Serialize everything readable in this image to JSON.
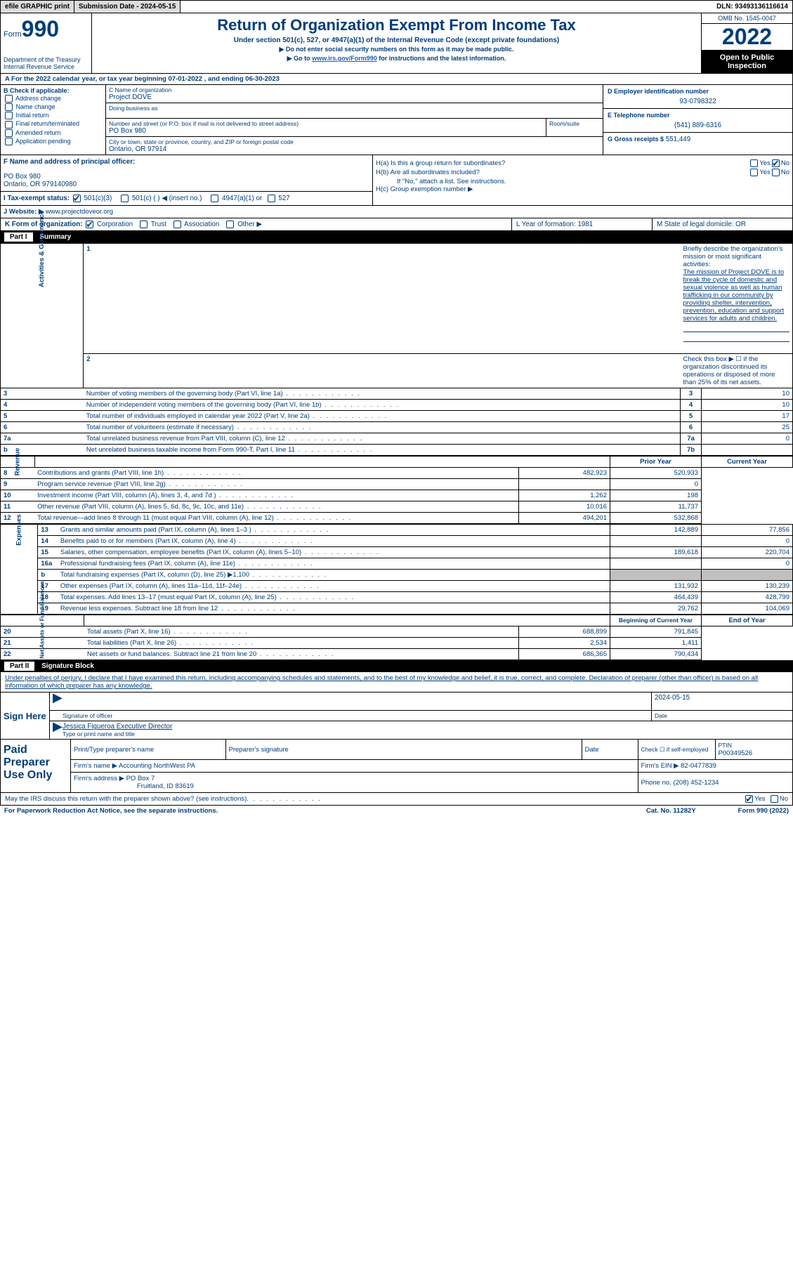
{
  "top": {
    "efile": "efile GRAPHIC print",
    "submission": "Submission Date - 2024-05-15",
    "dln": "DLN: 93493136116614"
  },
  "header": {
    "form_label": "Form",
    "form_number": "990",
    "title": "Return of Organization Exempt From Income Tax",
    "subtitle": "Under section 501(c), 527, or 4947(a)(1) of the Internal Revenue Code (except private foundations)",
    "note1": "▶ Do not enter social security numbers on this form as it may be made public.",
    "note2_prefix": "▶ Go to ",
    "note2_link": "www.irs.gov/Form990",
    "note2_suffix": " for instructions and the latest information.",
    "omb": "OMB No. 1545-0047",
    "year": "2022",
    "open": "Open to Public Inspection",
    "dept": "Department of the Treasury",
    "irs": "Internal Revenue Service"
  },
  "lineA": "A For the 2022 calendar year, or tax year beginning 07-01-2022    , and ending 06-30-2023",
  "sectionB": {
    "header": "B Check if applicable:",
    "items": [
      "Address change",
      "Name change",
      "Initial return",
      "Final return/terminated",
      "Amended return",
      "Application pending"
    ]
  },
  "sectionC": {
    "name_label": "C Name of organization",
    "name": "Project DOVE",
    "dba_label": "Doing business as",
    "dba": "",
    "street_label": "Number and street (or P.O. box if mail is not delivered to street address)",
    "room_label": "Room/suite",
    "street": "PO Box 980",
    "city_label": "City or town, state or province, country, and ZIP or foreign postal code",
    "city": "Ontario, OR  97914"
  },
  "sectionD": {
    "ein_label": "D Employer identification number",
    "ein": "93-0798322",
    "phone_label": "E Telephone number",
    "phone": "(541) 889-6316",
    "gross_label": "G Gross receipts $",
    "gross": "551,449"
  },
  "sectionF": {
    "label": "F Name and address of principal officer:",
    "name": "",
    "addr1": "PO Box 980",
    "addr2": "Ontario, OR  979140980"
  },
  "sectionH": {
    "ha": "H(a)  Is this a group return for subordinates?",
    "ha_no": true,
    "hb": "H(b)  Are all subordinates included?",
    "hb_note": "If \"No,\" attach a list. See instructions.",
    "hc": "H(c)  Group exemption number ▶"
  },
  "sectionI": {
    "label": "I  Tax-exempt status:",
    "opt1": "501(c)(3)",
    "opt2": "501(c) (  ) ◀ (insert no.)",
    "opt3": "4947(a)(1) or",
    "opt4": "527"
  },
  "sectionJ": {
    "label": "J  Website: ▶",
    "value": "www.projectdoveor.org"
  },
  "sectionK": {
    "label": "K Form of organization:",
    "opts": [
      "Corporation",
      "Trust",
      "Association",
      "Other ▶"
    ],
    "L": "L Year of formation: 1981",
    "M": "M State of legal domicile: OR"
  },
  "part1": {
    "title": "Summary",
    "q1_label": "Briefly describe the organization's mission or most significant activities:",
    "q1_text": "The mission of Project DOVE is to break the cycle of domestic and sexual violence as well as human trafficking in our community by providing shelter, intervention, prevention, education and support services for adults and children.",
    "q2": "Check this box ▶ ☐  if the organization discontinued its operations or disposed of more than 25% of its net assets.",
    "rows_ag": [
      {
        "n": "3",
        "t": "Number of voting members of the governing body (Part VI, line 1a)",
        "box": "3",
        "v": "10"
      },
      {
        "n": "4",
        "t": "Number of independent voting members of the governing body (Part VI, line 1b)",
        "box": "4",
        "v": "10"
      },
      {
        "n": "5",
        "t": "Total number of individuals employed in calendar year 2022 (Part V, line 2a)",
        "box": "5",
        "v": "17"
      },
      {
        "n": "6",
        "t": "Total number of volunteers (estimate if necessary)",
        "box": "6",
        "v": "25"
      },
      {
        "n": "7a",
        "t": "Total unrelated business revenue from Part VIII, column (C), line 12",
        "box": "7a",
        "v": "0"
      },
      {
        "n": "b",
        "t": "Net unrelated business taxable income from Form 990-T, Part I, line 11",
        "box": "7b",
        "v": ""
      }
    ],
    "py_hdr": "Prior Year",
    "cy_hdr": "Current Year",
    "rows_rev": [
      {
        "n": "8",
        "t": "Contributions and grants (Part VIII, line 1h)",
        "py": "482,923",
        "cy": "520,933"
      },
      {
        "n": "9",
        "t": "Program service revenue (Part VIII, line 2g)",
        "py": "",
        "cy": "0"
      },
      {
        "n": "10",
        "t": "Investment income (Part VIII, column (A), lines 3, 4, and 7d )",
        "py": "1,262",
        "cy": "198"
      },
      {
        "n": "11",
        "t": "Other revenue (Part VIII, column (A), lines 5, 6d, 8c, 9c, 10c, and 11e)",
        "py": "10,016",
        "cy": "11,737"
      },
      {
        "n": "12",
        "t": "Total revenue—add lines 8 through 11 (must equal Part VIII, column (A), line 12)",
        "py": "494,201",
        "cy": "532,868"
      }
    ],
    "rows_exp": [
      {
        "n": "13",
        "t": "Grants and similar amounts paid (Part IX, column (A), lines 1–3 )",
        "py": "142,889",
        "cy": "77,856"
      },
      {
        "n": "14",
        "t": "Benefits paid to or for members (Part IX, column (A), line 4)",
        "py": "",
        "cy": "0"
      },
      {
        "n": "15",
        "t": "Salaries, other compensation, employee benefits (Part IX, column (A), lines 5–10)",
        "py": "189,618",
        "cy": "220,704"
      },
      {
        "n": "16a",
        "t": "Professional fundraising fees (Part IX, column (A), line 11e)",
        "py": "",
        "cy": "0"
      },
      {
        "n": "b",
        "t": "Total fundraising expenses (Part IX, column (D), line 25) ▶1,100",
        "py": "shade",
        "cy": "shade"
      },
      {
        "n": "17",
        "t": "Other expenses (Part IX, column (A), lines 11a–11d, 11f–24e)",
        "py": "131,932",
        "cy": "130,239"
      },
      {
        "n": "18",
        "t": "Total expenses. Add lines 13–17 (must equal Part IX, column (A), line 25)",
        "py": "464,439",
        "cy": "428,799"
      },
      {
        "n": "19",
        "t": "Revenue less expenses. Subtract line 18 from line 12",
        "py": "29,762",
        "cy": "104,069"
      }
    ],
    "boy_hdr": "Beginning of Current Year",
    "eoy_hdr": "End of Year",
    "rows_na": [
      {
        "n": "20",
        "t": "Total assets (Part X, line 16)",
        "py": "688,899",
        "cy": "791,845"
      },
      {
        "n": "21",
        "t": "Total liabilities (Part X, line 26)",
        "py": "2,534",
        "cy": "1,411"
      },
      {
        "n": "22",
        "t": "Net assets or fund balances. Subtract line 21 from line 20",
        "py": "686,365",
        "cy": "790,434"
      }
    ],
    "side_ag": "Activities & Governance",
    "side_rev": "Revenue",
    "side_exp": "Expenses",
    "side_na": "Net Assets or Fund Balances"
  },
  "part2": {
    "title": "Signature Block",
    "decl": "Under penalties of perjury, I declare that I have examined this return, including accompanying schedules and statements, and to the best of my knowledge and belief, it is true, correct, and complete. Declaration of preparer (other than officer) is based on all information of which preparer has any knowledge.",
    "sign_here": "Sign Here",
    "sig_officer": "Signature of officer",
    "sig_date": "2024-05-15",
    "date_label": "Date",
    "officer_name": "Jessica Figueroa  Executive Director",
    "name_title_label": "Type or print name and title",
    "paid": "Paid Preparer Use Only",
    "prep_name_label": "Print/Type preparer's name",
    "prep_sig_label": "Preparer's signature",
    "check_self": "Check ☐ if self-employed",
    "ptin_label": "PTIN",
    "ptin": "P00349526",
    "firm_name_label": "Firm's name    ▶",
    "firm_name": "Accounting NorthWest PA",
    "firm_ein_label": "Firm's EIN ▶",
    "firm_ein": "82-0477839",
    "firm_addr_label": "Firm's address ▶",
    "firm_addr1": "PO Box 7",
    "firm_addr2": "Fruitland, ID  83619",
    "phone_label": "Phone no.",
    "phone": "(208) 452-1234",
    "discuss": "May the IRS discuss this return with the preparer shown above? (see instructions)",
    "discuss_yes": true
  },
  "footer": {
    "pra": "For Paperwork Reduction Act Notice, see the separate instructions.",
    "cat": "Cat. No. 11282Y",
    "form": "Form 990 (2022)"
  }
}
